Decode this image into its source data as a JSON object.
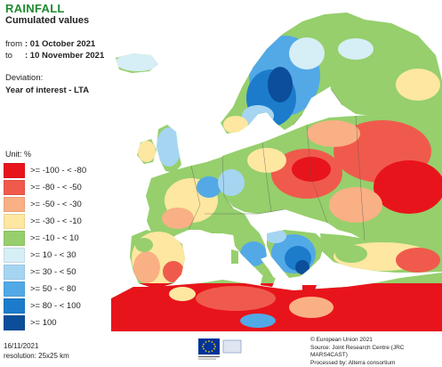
{
  "header": {
    "title": "RAINFALL",
    "subtitle": "Cumulated values",
    "from_label": "from",
    "from_value": ": 01 October 2021",
    "to_label": "to",
    "to_value": ": 10 November 2021",
    "deviation_label": "Deviation:",
    "deviation_value": "Year of interest - LTA"
  },
  "legend": {
    "unit": "Unit: %",
    "items": [
      {
        "label": ">= -100 - < -80",
        "color": "#e8141c"
      },
      {
        "label": ">= -80 - < -50",
        "color": "#f05a4c"
      },
      {
        "label": ">= -50 - < -30",
        "color": "#f9b084"
      },
      {
        "label": ">= -30 - < -10",
        "color": "#fde7a1"
      },
      {
        "label": ">= -10 - < 10",
        "color": "#96cf6c"
      },
      {
        "label": ">= 10 - < 30",
        "color": "#d6eef6"
      },
      {
        "label": ">= 30 - < 50",
        "color": "#a6d5f2"
      },
      {
        "label": ">= 50 - < 80",
        "color": "#52a9e6"
      },
      {
        "label": ">= 80 - < 100",
        "color": "#1c7ccb"
      },
      {
        "label": ">= 100",
        "color": "#0c4e9a"
      }
    ]
  },
  "footer": {
    "date": "16/11/2021",
    "resolution": "resolution: 25x25 km",
    "copyright": "© European Union 2021",
    "source": "Source: Joint Research Centre (JRC MARS4CAST)",
    "processed": "Processed by: Alterra consortium"
  },
  "colors": {
    "title_green": "#1e8a2e",
    "sea": "#ffffff",
    "no_data": "#d9d9d9",
    "border": "#555555"
  },
  "icons": [
    "eu-flag-icon"
  ]
}
